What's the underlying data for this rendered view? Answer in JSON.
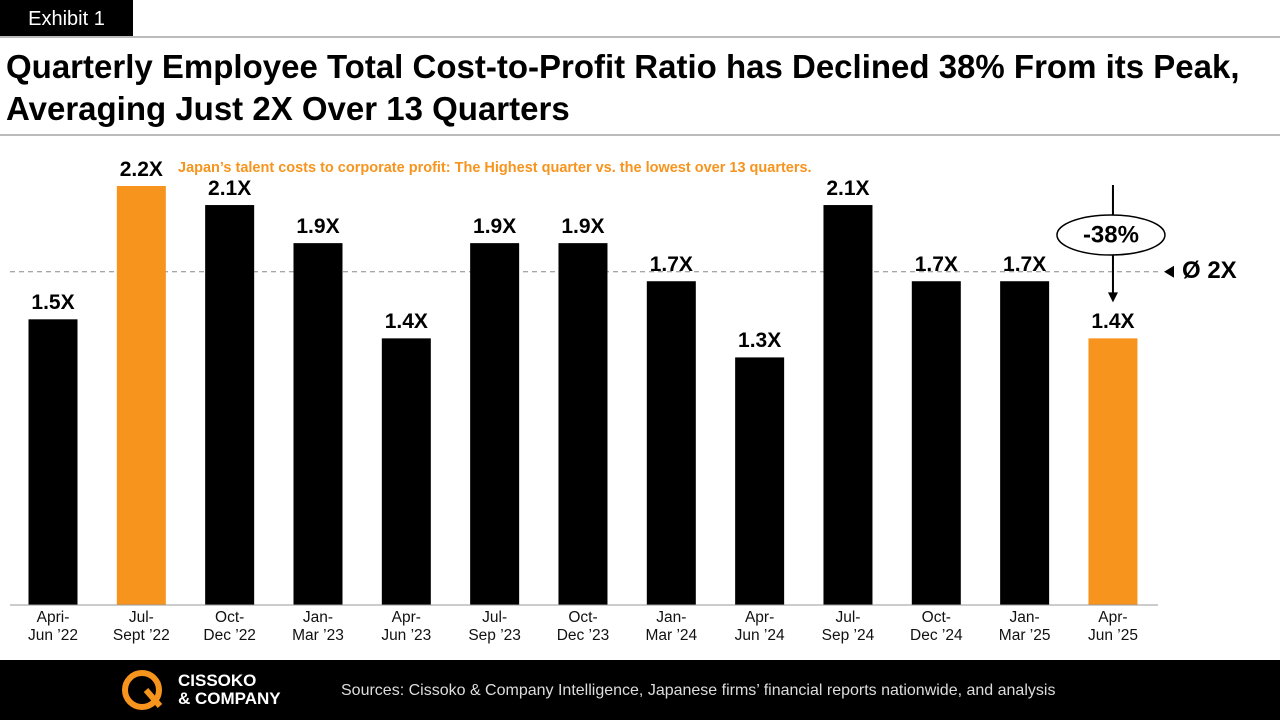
{
  "exhibit": "Exhibit 1",
  "chart_data": {
    "type": "bar",
    "title": "Quarterly Employee Total Cost-to-Profit Ratio has Declined 38% From its Peak, Averaging Just 2X Over 13 Quarters",
    "subtitle": "Japan’s talent costs to corporate profit: The Highest quarter vs. the lowest over 13 quarters.",
    "categories": [
      "Apri-\nJun ’22",
      "Jul-\nSept ’22",
      "Oct-\nDec ’22",
      "Jan-\nMar ’23",
      "Apr-\nJun ’23",
      "Jul-\nSep ’23",
      "Oct-\nDec ’23",
      "Jan-\nMar ’24",
      "Apr-\nJun ’24",
      "Jul-\nSep ’24",
      "Oct-\nDec ’24",
      "Jan-\nMar ’25",
      "Apr-\nJun ’25"
    ],
    "values": [
      1.5,
      2.2,
      2.1,
      1.9,
      1.4,
      1.9,
      1.9,
      1.7,
      1.3,
      2.1,
      1.7,
      1.7,
      1.4
    ],
    "value_labels": [
      "1.5X",
      "2.2X",
      "2.1X",
      "1.9X",
      "1.4X",
      "1.9X",
      "1.9X",
      "1.7X",
      "1.3X",
      "2.1X",
      "1.7X",
      "1.7X",
      "1.4X"
    ],
    "colors": [
      "#000000",
      "#f7941d",
      "#000000",
      "#000000",
      "#000000",
      "#000000",
      "#000000",
      "#000000",
      "#000000",
      "#000000",
      "#000000",
      "#000000",
      "#f7941d"
    ],
    "ylim": [
      0,
      2.2
    ],
    "reference_line": {
      "value": 1.75,
      "label": "Ø 2X"
    },
    "annotation": "-38%"
  },
  "footer": {
    "logo_line1": "CISSOKO",
    "logo_line2": "& COMPANY",
    "sources": "Sources: Cissoko & Company Intelligence, Japanese firms’ financial reports nationwide, and analysis"
  }
}
